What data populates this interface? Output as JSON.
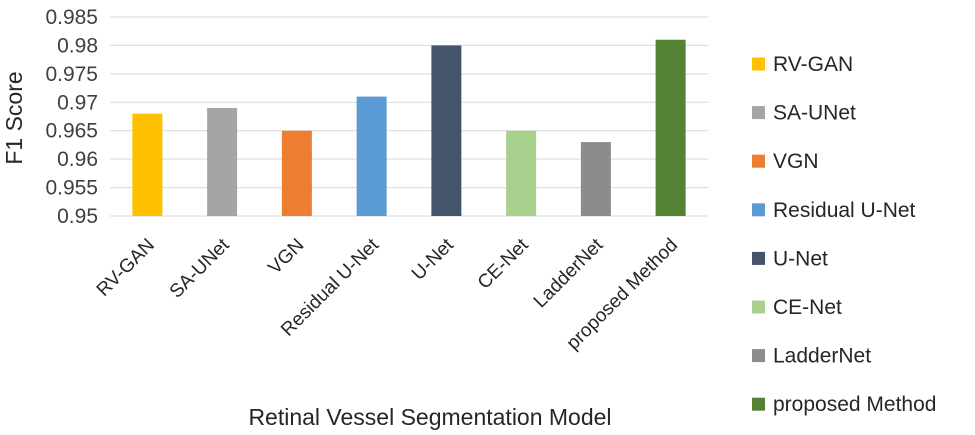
{
  "chart_data": {
    "type": "bar",
    "categories": [
      "RV-GAN",
      "SA-UNet",
      "VGN",
      "Residual U-Net",
      "U-Net",
      "CE-Net",
      "LadderNet",
      "proposed Method"
    ],
    "values": [
      0.968,
      0.969,
      0.965,
      0.971,
      0.98,
      0.965,
      0.963,
      0.981
    ],
    "colors": [
      "#FFC000",
      "#A5A5A5",
      "#ED7D31",
      "#5B9BD5",
      "#44546A",
      "#A9D18E",
      "#8C8C8C",
      "#548235"
    ],
    "title": "",
    "xlabel": "Retinal Vessel Segmentation Model",
    "ylabel": "F1 Score",
    "ylim": [
      0.95,
      0.985
    ],
    "yticks": [
      "0.95",
      "0.955",
      "0.96",
      "0.965",
      "0.97",
      "0.975",
      "0.98",
      "0.985"
    ],
    "grid": true,
    "legend_position": "right",
    "legend": [
      "RV-GAN",
      "SA-UNet",
      "VGN",
      "Residual U-Net",
      "U-Net",
      "CE-Net",
      "LadderNet",
      "proposed Method"
    ]
  }
}
